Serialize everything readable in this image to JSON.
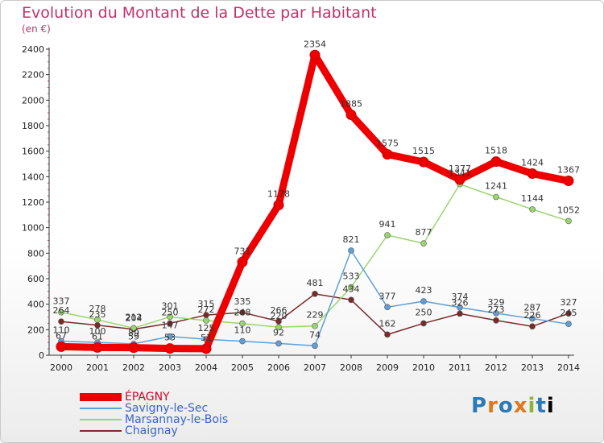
{
  "header": {
    "title": "Evolution du Montant de la Dette par Habitant",
    "subtitle": "(en €)"
  },
  "logo": {
    "chars": [
      "P",
      "r",
      "o",
      "x",
      "i",
      "t",
      "i"
    ]
  },
  "chart_data": {
    "type": "line",
    "title": "Evolution du Montant de la Dette par Habitant",
    "subtitle": "(en €)",
    "xlabel": "",
    "ylabel": "",
    "ylim": [
      0,
      2400
    ],
    "yticks": [
      0,
      200,
      400,
      600,
      800,
      1000,
      1200,
      1400,
      1600,
      1800,
      2000,
      2200,
      2400
    ],
    "x": [
      "2000",
      "2001",
      "2002",
      "2003",
      "2004",
      "2005",
      "2006",
      "2007",
      "2008",
      "2009",
      "2010",
      "2011",
      "2012",
      "2013",
      "2014"
    ],
    "grid": false,
    "legend_position": "bottom-left",
    "series": [
      {
        "name": "ÉPAGNY",
        "color": "#ee0000",
        "values": [
          67,
          61,
          59,
          53,
          51,
          731,
          1178,
          2354,
          1885,
          1575,
          1515,
          1377,
          1518,
          1424,
          1367
        ],
        "labels": [
          "67",
          "61",
          "59",
          "53",
          "51",
          "731",
          "1178",
          "2354",
          "1885",
          "1575",
          "1515",
          "1377",
          "1518",
          "1424",
          "1367"
        ]
      },
      {
        "name": "Savigny-le-Sec",
        "color": "#5f9fd6",
        "values": [
          110,
          100,
          89,
          147,
          125,
          110,
          92,
          74,
          821,
          377,
          423,
          374,
          329,
          287,
          245
        ],
        "labels": [
          "110",
          "100",
          "89",
          "147",
          "125",
          "110",
          "92",
          "74",
          "821",
          "377",
          "423",
          "374",
          "329",
          "287",
          "245"
        ]
      },
      {
        "name": "Marsannay-le-Bois",
        "color": "#9ad66e",
        "values": [
          337,
          278,
          212,
          301,
          272,
          248,
          220,
          229,
          533,
          941,
          877,
          1341,
          1241,
          1144,
          1052
        ],
        "labels": [
          "337",
          "278",
          "212",
          "301",
          "272",
          "248",
          "220",
          "229",
          "533",
          "941",
          "877",
          "1341",
          "1241",
          "1144",
          "1052"
        ]
      },
      {
        "name": "Chaignay",
        "color": "#7a2a2a",
        "values": [
          264,
          235,
          204,
          250,
          315,
          335,
          266,
          481,
          434,
          162,
          250,
          326,
          273,
          226,
          327
        ],
        "labels": [
          "264",
          "235",
          "204",
          "250",
          "315",
          "335",
          "266",
          "481",
          "434",
          "162",
          "250",
          "326",
          "273",
          "226",
          "327"
        ]
      }
    ]
  }
}
